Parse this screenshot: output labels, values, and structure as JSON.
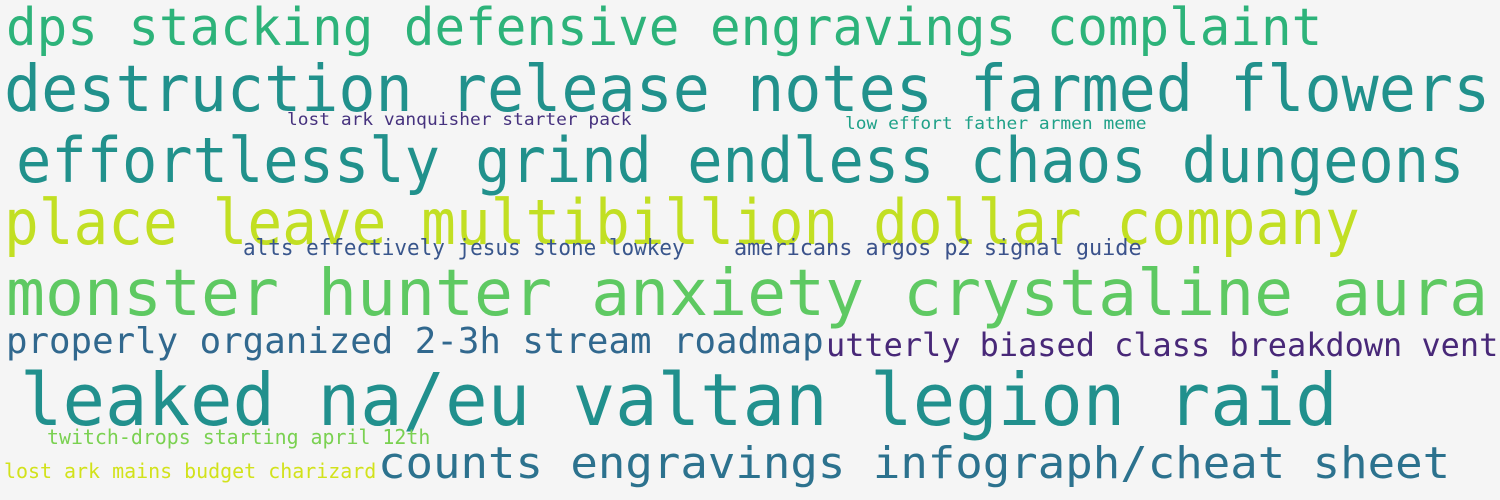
{
  "words": [
    {
      "text": "dps stacking defensive engravings complaint",
      "color": "#2db37a"
    },
    {
      "text": "destruction release notes farmed flowers",
      "color": "#21918c"
    },
    {
      "text": "lost ark vanquisher starter pack",
      "color": "#46327e"
    },
    {
      "text": "low effort father armen meme",
      "color": "#1fa188"
    },
    {
      "text": "effortlessly grind endless chaos dungeons",
      "color": "#21918c"
    },
    {
      "text": "place leave multibillion dollar company",
      "color": "#c2df23"
    },
    {
      "text": "alts effectively jesus stone lowkey",
      "color": "#39568c"
    },
    {
      "text": "americans argos p2 signal guide",
      "color": "#3b528b"
    },
    {
      "text": "monster hunter anxiety crystaline aura",
      "color": "#5ec962"
    },
    {
      "text": "properly organized 2-3h stream roadmap",
      "color": "#31688e"
    },
    {
      "text": "utterly biased class breakdown vent",
      "color": "#482878"
    },
    {
      "text": "leaked na/eu valtan legion raid",
      "color": "#21908d"
    },
    {
      "text": "twitch-drops starting april 12th",
      "color": "#7ad151"
    },
    {
      "text": "lost ark mains budget charizard",
      "color": "#d2e21b"
    },
    {
      "text": "counts engravings infograph/cheat sheet",
      "color": "#2c728e"
    }
  ]
}
